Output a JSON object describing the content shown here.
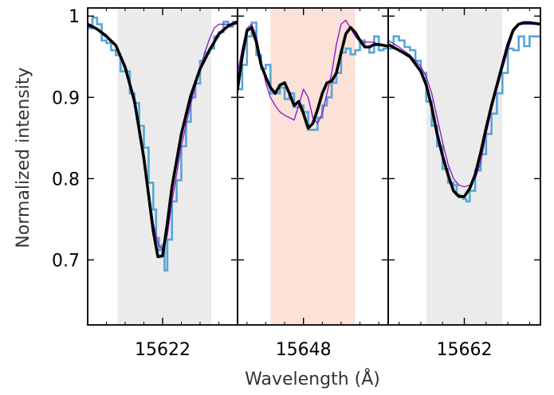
{
  "chart_data": {
    "type": "line",
    "xlabel": "Wavelength (Å)",
    "ylabel": "Normalized intensity",
    "ylim": [
      0.62,
      1.01
    ],
    "yticks": [
      0.7,
      0.8,
      0.9,
      1.0
    ],
    "ytick_labels": [
      "0.7",
      "0.8",
      "0.9",
      "1"
    ],
    "colors": {
      "observed": "#56a6d6",
      "model_black": "#000000",
      "model_purple": "#8a1fcf",
      "band_gray": "#ebebeb",
      "band_pink": "#fbe1d8"
    },
    "panels": [
      {
        "xlim": [
          15614.0,
          15630.0
        ],
        "xticks": [
          15622
        ],
        "xtick_labels": [
          "15622"
        ],
        "band": [
          15617.2,
          15627.2
        ],
        "band_color": "gray",
        "observed": {
          "x": [
            15614.0,
            15614.5,
            15615.0,
            15615.5,
            15616.0,
            15616.5,
            15617.0,
            15617.5,
            15618.0,
            15618.5,
            15619.0,
            15619.5,
            15620.0,
            15620.5,
            15621.0,
            15621.3,
            15621.6,
            15621.9,
            15622.2,
            15622.5,
            15623.0,
            15623.5,
            15624.0,
            15624.5,
            15625.0,
            15625.5,
            15626.0,
            15626.5,
            15627.0,
            15627.5,
            15628.0,
            15628.5,
            15629.0,
            15629.5
          ],
          "y": [
            0.985,
            0.998,
            0.99,
            0.97,
            0.967,
            0.958,
            0.952,
            0.932,
            0.932,
            0.905,
            0.893,
            0.865,
            0.838,
            0.795,
            0.762,
            0.727,
            0.712,
            0.718,
            0.687,
            0.725,
            0.772,
            0.798,
            0.84,
            0.87,
            0.9,
            0.917,
            0.945,
            0.955,
            0.96,
            0.975,
            0.98,
            0.993,
            0.987,
            0.993
          ]
        },
        "model_black": {
          "x": [
            15614.0,
            15615.0,
            15616.0,
            15617.0,
            15618.0,
            15619.0,
            15620.0,
            15620.5,
            15621.0,
            15621.5,
            15622.0,
            15622.5,
            15623.0,
            15624.0,
            15625.0,
            15626.0,
            15627.0,
            15628.0,
            15629.0,
            15630.0
          ],
          "y": [
            0.99,
            0.984,
            0.975,
            0.964,
            0.937,
            0.895,
            0.825,
            0.78,
            0.735,
            0.704,
            0.705,
            0.745,
            0.79,
            0.855,
            0.902,
            0.935,
            0.958,
            0.978,
            0.988,
            0.993
          ]
        },
        "model_purple": {
          "x": [
            15614.0,
            15615.0,
            15616.0,
            15617.0,
            15618.0,
            15619.0,
            15620.0,
            15620.5,
            15621.0,
            15621.5,
            15622.0,
            15622.5,
            15623.0,
            15624.0,
            15625.0,
            15626.0,
            15626.5,
            15627.0,
            15627.5,
            15628.0,
            15629.0,
            15630.0
          ],
          "y": [
            0.987,
            0.985,
            0.977,
            0.964,
            0.935,
            0.89,
            0.83,
            0.785,
            0.745,
            0.72,
            0.712,
            0.73,
            0.772,
            0.84,
            0.892,
            0.935,
            0.955,
            0.972,
            0.985,
            0.99,
            0.99,
            0.99
          ]
        }
      },
      {
        "xlim": [
          15641.0,
          15657.0
        ],
        "xticks": [
          15648
        ],
        "xtick_labels": [
          "15648"
        ],
        "band": [
          15644.5,
          15653.5
        ],
        "band_color": "pink",
        "observed": {
          "x": [
            15641.0,
            15641.5,
            15642.0,
            15642.5,
            15643.0,
            15643.5,
            15644.0,
            15644.5,
            15645.0,
            15645.5,
            15646.0,
            15646.5,
            15647.0,
            15647.5,
            15648.0,
            15648.5,
            15649.0,
            15649.5,
            15650.0,
            15650.5,
            15651.0,
            15651.5,
            15652.0,
            15652.5,
            15653.0,
            15653.5,
            15654.0,
            15654.5,
            15655.0,
            15655.5,
            15656.0,
            15656.5
          ],
          "y": [
            0.91,
            0.94,
            0.975,
            0.992,
            0.952,
            0.935,
            0.94,
            0.905,
            0.905,
            0.912,
            0.898,
            0.905,
            0.888,
            0.89,
            0.882,
            0.86,
            0.86,
            0.875,
            0.89,
            0.9,
            0.918,
            0.93,
            0.955,
            0.96,
            0.953,
            0.958,
            0.97,
            0.962,
            0.955,
            0.975,
            0.958,
            0.96
          ]
        },
        "model_black": {
          "x": [
            15641.0,
            15641.5,
            15642.0,
            15642.5,
            15643.0,
            15643.5,
            15644.0,
            15644.5,
            15645.0,
            15645.5,
            15646.0,
            15646.5,
            15647.0,
            15647.5,
            15648.0,
            15648.5,
            15649.0,
            15649.5,
            15650.0,
            15650.5,
            15651.0,
            15651.5,
            15652.0,
            15652.5,
            15653.0,
            15653.5,
            15654.0,
            15654.5,
            15655.0,
            15655.5,
            15656.0,
            15657.0
          ],
          "y": [
            0.91,
            0.95,
            0.982,
            0.986,
            0.968,
            0.94,
            0.925,
            0.912,
            0.905,
            0.915,
            0.918,
            0.905,
            0.89,
            0.895,
            0.88,
            0.862,
            0.868,
            0.885,
            0.905,
            0.918,
            0.92,
            0.93,
            0.955,
            0.978,
            0.986,
            0.98,
            0.97,
            0.962,
            0.962,
            0.965,
            0.965,
            0.963
          ]
        },
        "model_purple": {
          "x": [
            15641.0,
            15641.5,
            15642.0,
            15642.5,
            15643.0,
            15643.5,
            15644.0,
            15644.5,
            15645.0,
            15645.5,
            15646.0,
            15646.5,
            15647.0,
            15647.5,
            15648.0,
            15648.5,
            15649.0,
            15649.5,
            15650.0,
            15650.5,
            15651.0,
            15651.5,
            15652.0,
            15652.5,
            15653.0,
            15653.5,
            15654.0,
            15654.5,
            15655.0,
            15655.5,
            15656.0,
            15657.0
          ],
          "y": [
            0.93,
            0.96,
            0.985,
            0.99,
            0.975,
            0.945,
            0.918,
            0.9,
            0.89,
            0.882,
            0.878,
            0.875,
            0.872,
            0.89,
            0.91,
            0.9,
            0.875,
            0.868,
            0.88,
            0.905,
            0.93,
            0.965,
            0.99,
            0.995,
            0.985,
            0.975,
            0.968,
            0.968,
            0.968,
            0.968,
            0.965,
            0.963
          ]
        }
      },
      {
        "xlim": [
          15655.0,
          15669.0
        ],
        "xticks": [
          15662
        ],
        "xtick_labels": [
          "15662"
        ],
        "band": [
          15658.5,
          15665.5
        ],
        "band_color": "gray",
        "observed": {
          "x": [
            15655.0,
            15655.5,
            15656.0,
            15656.5,
            15657.0,
            15657.5,
            15658.0,
            15658.5,
            15659.0,
            15659.5,
            15660.0,
            15660.5,
            15661.0,
            15661.3,
            15661.6,
            15661.9,
            15662.2,
            15662.5,
            15663.0,
            15663.5,
            15664.0,
            15664.5,
            15665.0,
            15665.5,
            15666.0,
            15666.5,
            15667.0,
            15667.5,
            15668.0,
            15668.5
          ],
          "y": [
            0.96,
            0.975,
            0.97,
            0.962,
            0.958,
            0.945,
            0.93,
            0.895,
            0.865,
            0.84,
            0.812,
            0.795,
            0.792,
            0.78,
            0.778,
            0.775,
            0.772,
            0.785,
            0.81,
            0.83,
            0.855,
            0.88,
            0.905,
            0.93,
            0.96,
            0.958,
            0.975,
            0.963,
            0.975,
            0.975
          ]
        },
        "model_black": {
          "x": [
            15655.0,
            15656.0,
            15657.0,
            15658.0,
            15658.5,
            15659.0,
            15659.5,
            15660.0,
            15660.5,
            15661.0,
            15661.5,
            15662.0,
            15662.5,
            15663.0,
            15663.5,
            15664.0,
            15664.5,
            15665.0,
            15665.5,
            15666.0,
            15666.5,
            15667.0,
            15667.5,
            15668.0,
            15669.0
          ],
          "y": [
            0.965,
            0.958,
            0.95,
            0.932,
            0.915,
            0.888,
            0.855,
            0.828,
            0.805,
            0.785,
            0.778,
            0.778,
            0.788,
            0.805,
            0.832,
            0.862,
            0.89,
            0.915,
            0.94,
            0.965,
            0.983,
            0.99,
            0.992,
            0.992,
            0.99
          ]
        },
        "model_purple": {
          "x": [
            15655.0,
            15656.0,
            15657.0,
            15658.0,
            15658.5,
            15659.0,
            15659.5,
            15660.0,
            15660.5,
            15661.0,
            15661.5,
            15662.0,
            15662.5,
            15663.0,
            15663.5,
            15664.0,
            15664.5,
            15665.0,
            15665.5,
            15666.0,
            15666.5,
            15667.0,
            15668.0,
            15669.0
          ],
          "y": [
            0.97,
            0.962,
            0.952,
            0.938,
            0.925,
            0.905,
            0.875,
            0.845,
            0.818,
            0.8,
            0.792,
            0.79,
            0.792,
            0.8,
            0.82,
            0.855,
            0.885,
            0.91,
            0.935,
            0.958,
            0.98,
            0.99,
            0.99,
            0.99
          ]
        }
      }
    ]
  }
}
